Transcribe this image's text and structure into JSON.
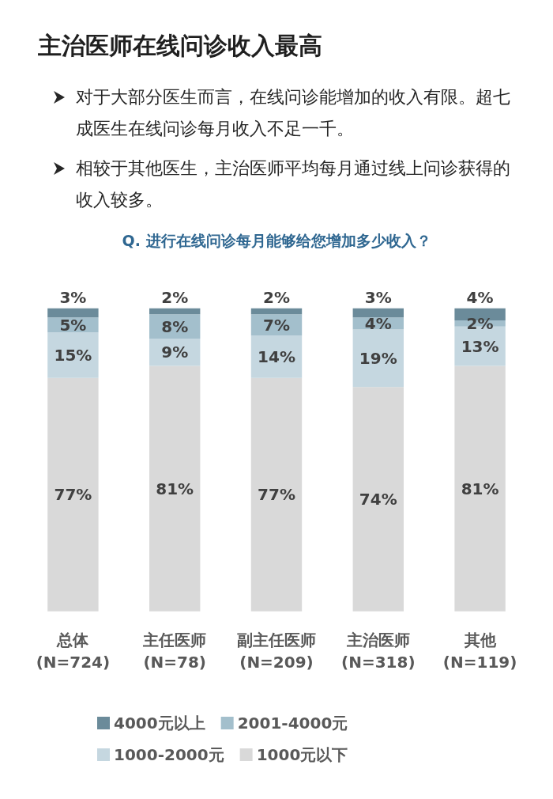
{
  "chart_data": {
    "type": "bar",
    "stacked": true,
    "title": "主治医师在线问诊收入最高",
    "subtitle": "Q. 进行在线问诊每月能够给您增加多少收入？",
    "annotations": [
      "对于大部分医生而言，在线问诊能增加的收入有限。超七成医生在线问诊每月收入不足一千。",
      "相较于其他医生，主治医师平均每月通过线上问诊获得的收入较多。"
    ],
    "categories": [
      "总体\n(N=724)",
      "主任医师\n(N=78)",
      "副主任医师\n(N=209)",
      "主治医师\n(N=318)",
      "其他\n(N=119)"
    ],
    "series": [
      {
        "name": "1000元以下",
        "color": "#d9d9d9",
        "values": [
          77,
          81,
          77,
          74,
          81
        ],
        "value_labels": [
          "77%",
          "81%",
          "77%",
          "74%",
          "81%"
        ]
      },
      {
        "name": "1000-2000元",
        "color": "#c5d7e0",
        "values": [
          15,
          9,
          14,
          19,
          13
        ],
        "value_labels": [
          "15%",
          "9%",
          "14%",
          "19%",
          "13%"
        ]
      },
      {
        "name": "2001-4000元",
        "color": "#a3bfcc",
        "values": [
          5,
          8,
          7,
          4,
          2
        ],
        "value_labels": [
          "5%",
          "8%",
          "7%",
          "4%",
          "2%"
        ]
      },
      {
        "name": "4000元以上",
        "color": "#6b8b9a",
        "values": [
          3,
          2,
          2,
          3,
          4
        ],
        "value_labels": [
          "3%",
          "2%",
          "2%",
          "3%",
          "4%"
        ]
      }
    ],
    "legend": "bottom",
    "grid": false,
    "tick_labels": "x"
  }
}
